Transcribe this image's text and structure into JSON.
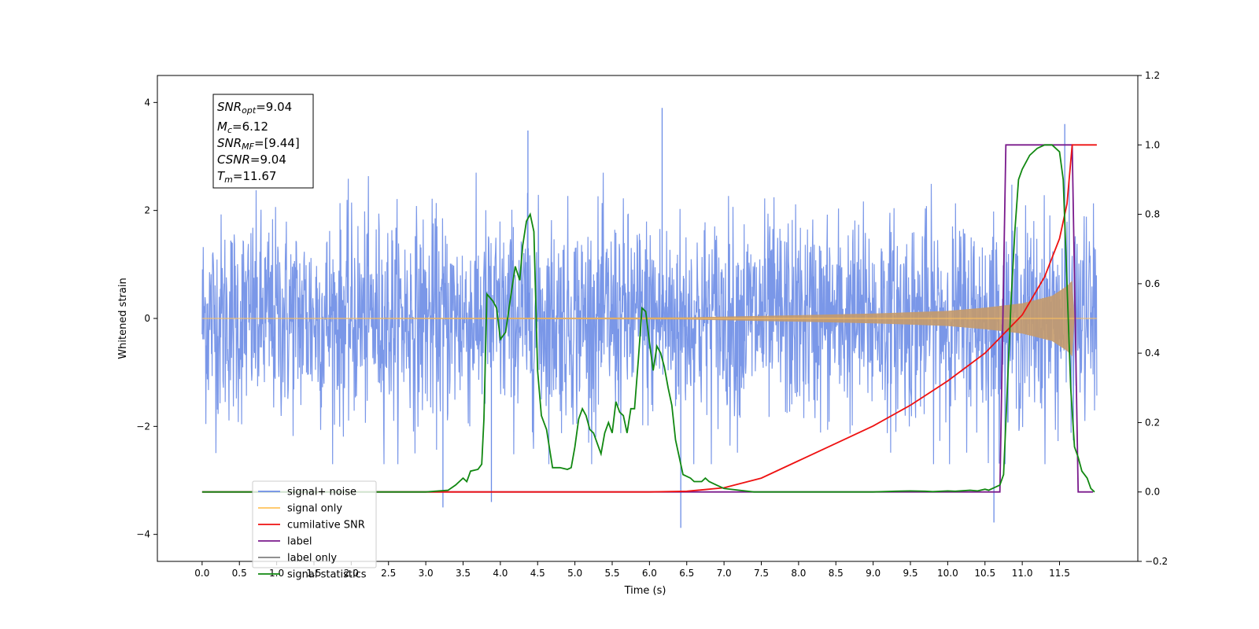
{
  "chart_data": {
    "type": "line",
    "title": "",
    "xlabel": "Time (s)",
    "ylabel": "Whitened strain",
    "ylabel_right": "",
    "xlim": [
      -0.6,
      12.55
    ],
    "ylim": [
      -4.5,
      4.5
    ],
    "ylim_right": [
      -0.2,
      1.2
    ],
    "x_ticks": [
      "0.0",
      "0.5",
      "1.0",
      "1.5",
      "2.0",
      "2.5",
      "3.0",
      "3.5",
      "4.0",
      "4.5",
      "5.0",
      "5.5",
      "6.0",
      "6.5",
      "7.0",
      "7.5",
      "8.0",
      "8.5",
      "9.0",
      "9.5",
      "10.0",
      "10.5",
      "11.0",
      "11.5"
    ],
    "y_ticks_left": [
      "−4",
      "−2",
      "0",
      "2",
      "4"
    ],
    "y_ticks_right": [
      "−0.2",
      "0.0",
      "0.2",
      "0.4",
      "0.6",
      "0.8",
      "1.0",
      "1.2"
    ],
    "grid": false,
    "legend_position": "lower-left",
    "info_box": {
      "snr_opt": {
        "sym": "SNR",
        "sub": "opt",
        "val": "=9.04"
      },
      "mc": {
        "sym": "M",
        "sub": "c",
        "val": "=6.12"
      },
      "snr_mf": {
        "sym": "SNR",
        "sub": "MF",
        "val": "=[9.44]"
      },
      "csnr": {
        "sym": "CSNR",
        "sub": "",
        "val": "=9.04"
      },
      "tm": {
        "sym": "T",
        "sub": "m",
        "val": "=11.67"
      }
    },
    "colors": {
      "signal_noise": "#6b8ce6",
      "signal_only": "#ffc25c",
      "cumulative_snr": "#ee1111",
      "label": "#7a1a8c",
      "label_only": "#808080",
      "signal_statistics": "#118811"
    },
    "series": [
      {
        "name": "signal+ noise",
        "axis": "left",
        "style": "noise band",
        "x_range": [
          0.0,
          12.0
        ],
        "typical_envelope": 2.0,
        "extreme_peaks": [
          [
            6.17,
            3.9
          ],
          [
            4.37,
            3.48
          ],
          [
            11.57,
            3.6
          ],
          [
            6.42,
            -3.88
          ],
          [
            10.62,
            -3.78
          ],
          [
            3.23,
            -3.5
          ],
          [
            3.88,
            -3.4
          ]
        ]
      },
      {
        "name": "signal only",
        "axis": "left",
        "style": "chirp envelope",
        "envelope": [
          [
            0.0,
            0.0
          ],
          [
            6.5,
            0.02
          ],
          [
            8.0,
            0.06
          ],
          [
            9.0,
            0.09
          ],
          [
            10.0,
            0.14
          ],
          [
            10.5,
            0.2
          ],
          [
            11.0,
            0.28
          ],
          [
            11.4,
            0.42
          ],
          [
            11.6,
            0.6
          ],
          [
            11.67,
            0.7
          ],
          [
            11.7,
            0.0
          ],
          [
            12.0,
            0.0
          ]
        ]
      },
      {
        "name": "cumilative SNR",
        "axis": "right",
        "points": [
          [
            0.0,
            0.0
          ],
          [
            6.0,
            0.0
          ],
          [
            6.5,
            0.002
          ],
          [
            7.0,
            0.012
          ],
          [
            7.5,
            0.04
          ],
          [
            8.0,
            0.09
          ],
          [
            8.5,
            0.14
          ],
          [
            9.0,
            0.19
          ],
          [
            9.5,
            0.25
          ],
          [
            10.0,
            0.32
          ],
          [
            10.5,
            0.4
          ],
          [
            11.0,
            0.51
          ],
          [
            11.3,
            0.62
          ],
          [
            11.5,
            0.73
          ],
          [
            11.6,
            0.83
          ],
          [
            11.67,
            1.0
          ],
          [
            12.0,
            1.0
          ]
        ]
      },
      {
        "name": "label",
        "axis": "right",
        "points": [
          [
            0.0,
            0.0
          ],
          [
            10.7,
            0.0
          ],
          [
            10.78,
            1.0
          ],
          [
            11.67,
            1.0
          ],
          [
            11.75,
            0.0
          ],
          [
            11.95,
            0.0
          ]
        ]
      },
      {
        "name": "label only",
        "axis": "right",
        "points": []
      },
      {
        "name": "signal statistics",
        "axis": "right",
        "points": [
          [
            0.0,
            0.0
          ],
          [
            2.3,
            0.0
          ],
          [
            3.0,
            0.0
          ],
          [
            3.3,
            0.005
          ],
          [
            3.4,
            0.02
          ],
          [
            3.5,
            0.04
          ],
          [
            3.55,
            0.03
          ],
          [
            3.6,
            0.06
          ],
          [
            3.7,
            0.065
          ],
          [
            3.75,
            0.08
          ],
          [
            3.78,
            0.21
          ],
          [
            3.82,
            0.57
          ],
          [
            3.9,
            0.55
          ],
          [
            3.95,
            0.53
          ],
          [
            4.0,
            0.44
          ],
          [
            4.07,
            0.46
          ],
          [
            4.13,
            0.55
          ],
          [
            4.2,
            0.65
          ],
          [
            4.26,
            0.61
          ],
          [
            4.3,
            0.71
          ],
          [
            4.35,
            0.78
          ],
          [
            4.4,
            0.8
          ],
          [
            4.45,
            0.75
          ],
          [
            4.5,
            0.35
          ],
          [
            4.55,
            0.22
          ],
          [
            4.62,
            0.18
          ],
          [
            4.7,
            0.07
          ],
          [
            4.8,
            0.07
          ],
          [
            4.9,
            0.065
          ],
          [
            4.95,
            0.07
          ],
          [
            5.0,
            0.13
          ],
          [
            5.05,
            0.21
          ],
          [
            5.1,
            0.24
          ],
          [
            5.15,
            0.22
          ],
          [
            5.2,
            0.18
          ],
          [
            5.25,
            0.17
          ],
          [
            5.3,
            0.14
          ],
          [
            5.35,
            0.11
          ],
          [
            5.4,
            0.17
          ],
          [
            5.45,
            0.2
          ],
          [
            5.5,
            0.17
          ],
          [
            5.55,
            0.26
          ],
          [
            5.6,
            0.23
          ],
          [
            5.65,
            0.22
          ],
          [
            5.7,
            0.17
          ],
          [
            5.75,
            0.24
          ],
          [
            5.8,
            0.24
          ],
          [
            5.85,
            0.38
          ],
          [
            5.9,
            0.53
          ],
          [
            5.95,
            0.52
          ],
          [
            6.0,
            0.43
          ],
          [
            6.05,
            0.35
          ],
          [
            6.1,
            0.42
          ],
          [
            6.15,
            0.4
          ],
          [
            6.2,
            0.36
          ],
          [
            6.25,
            0.3
          ],
          [
            6.3,
            0.25
          ],
          [
            6.35,
            0.15
          ],
          [
            6.45,
            0.05
          ],
          [
            6.55,
            0.04
          ],
          [
            6.6,
            0.03
          ],
          [
            6.7,
            0.03
          ],
          [
            6.75,
            0.04
          ],
          [
            6.8,
            0.03
          ],
          [
            6.9,
            0.02
          ],
          [
            7.0,
            0.01
          ],
          [
            7.2,
            0.005
          ],
          [
            7.4,
            0.0
          ],
          [
            9.0,
            0.0
          ],
          [
            9.3,
            0.002
          ],
          [
            9.5,
            0.003
          ],
          [
            9.7,
            0.002
          ],
          [
            9.8,
            0.001
          ],
          [
            10.0,
            0.003
          ],
          [
            10.1,
            0.002
          ],
          [
            10.3,
            0.005
          ],
          [
            10.4,
            0.003
          ],
          [
            10.5,
            0.008
          ],
          [
            10.55,
            0.005
          ],
          [
            10.6,
            0.01
          ],
          [
            10.7,
            0.02
          ],
          [
            10.75,
            0.05
          ],
          [
            10.8,
            0.3
          ],
          [
            10.85,
            0.55
          ],
          [
            10.9,
            0.75
          ],
          [
            10.95,
            0.9
          ],
          [
            11.0,
            0.93
          ],
          [
            11.1,
            0.97
          ],
          [
            11.2,
            0.99
          ],
          [
            11.3,
            1.0
          ],
          [
            11.4,
            1.0
          ],
          [
            11.5,
            0.98
          ],
          [
            11.55,
            0.9
          ],
          [
            11.6,
            0.6
          ],
          [
            11.65,
            0.3
          ],
          [
            11.7,
            0.13
          ],
          [
            11.75,
            0.1
          ],
          [
            11.8,
            0.06
          ],
          [
            11.87,
            0.04
          ],
          [
            11.92,
            0.01
          ],
          [
            11.97,
            0.0
          ]
        ]
      }
    ]
  }
}
